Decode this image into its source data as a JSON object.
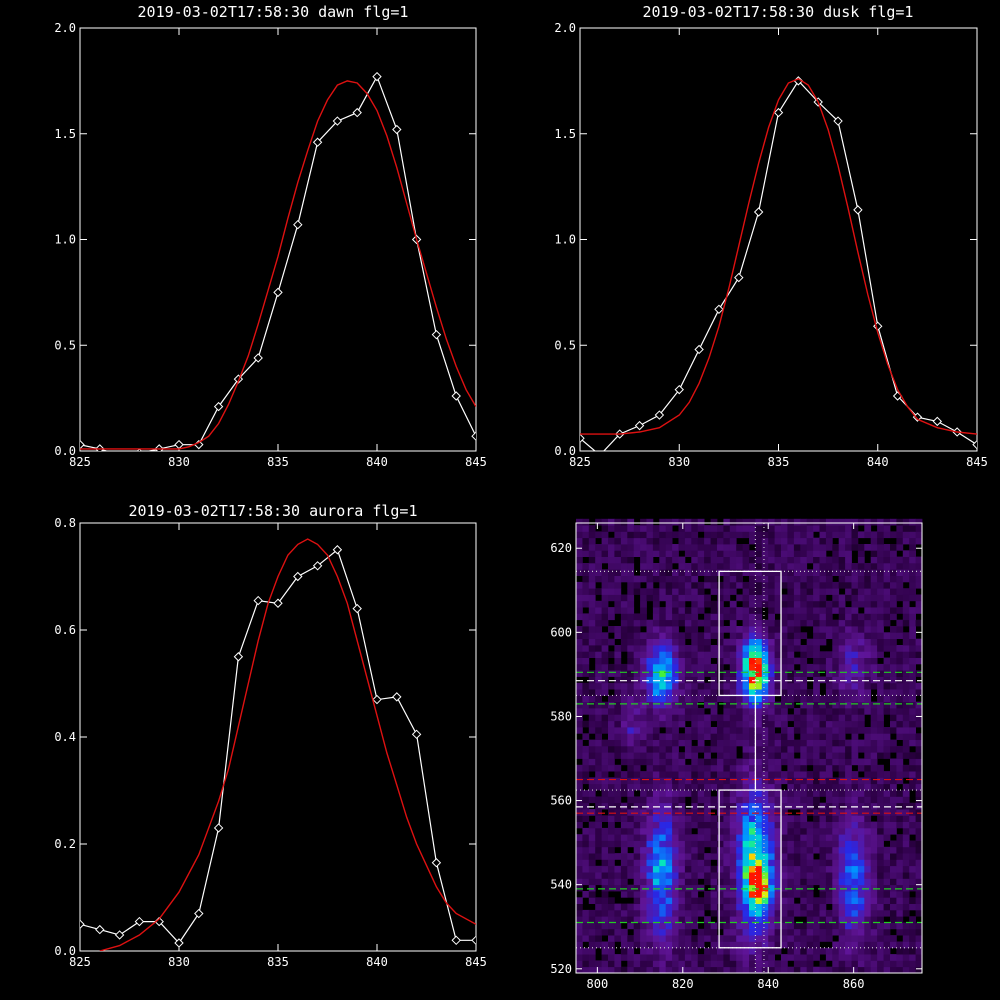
{
  "chart_data": [
    {
      "type": "line",
      "title": "2019-03-02T17:58:30 dawn flg=1",
      "xlim": [
        825,
        845
      ],
      "ylim": [
        0,
        2.0
      ],
      "xticks": [
        825,
        830,
        835,
        840,
        845
      ],
      "yticks": [
        0.0,
        0.5,
        1.0,
        1.5,
        2.0
      ],
      "xtick_labels": [
        "825",
        "830",
        "835",
        "840",
        "845"
      ],
      "ytick_labels": [
        "0.0",
        "0.5",
        "1.0",
        "1.5",
        "2.0"
      ],
      "series": [
        {
          "kind": "observed",
          "color": "#ffffff",
          "marker": "diamond",
          "x": [
            825,
            826,
            827,
            828,
            829,
            830,
            831,
            832,
            833,
            834,
            835,
            836,
            837,
            838,
            839,
            840,
            841,
            842,
            843,
            844,
            845
          ],
          "y": [
            0.03,
            0.01,
            -0.02,
            -0.01,
            0.01,
            0.03,
            0.03,
            0.21,
            0.34,
            0.44,
            0.75,
            1.07,
            1.46,
            1.56,
            1.6,
            1.77,
            1.52,
            1.0,
            0.55,
            0.26,
            0.07
          ]
        },
        {
          "kind": "fit",
          "color": "#dd1111",
          "marker": "none",
          "x": [
            825,
            826,
            827,
            828,
            829,
            830,
            830.5,
            831,
            831.5,
            832,
            832.5,
            833,
            833.5,
            834,
            834.5,
            835,
            835.5,
            836,
            836.5,
            837,
            837.5,
            838,
            838.5,
            839,
            839.5,
            840,
            840.5,
            841,
            841.5,
            842,
            842.5,
            843,
            843.5,
            844,
            844.5,
            845
          ],
          "y": [
            0.01,
            0.01,
            0.01,
            0.01,
            0.01,
            0.01,
            0.02,
            0.04,
            0.07,
            0.13,
            0.22,
            0.33,
            0.45,
            0.6,
            0.76,
            0.92,
            1.1,
            1.27,
            1.42,
            1.56,
            1.66,
            1.73,
            1.75,
            1.74,
            1.69,
            1.61,
            1.49,
            1.34,
            1.17,
            1.0,
            0.84,
            0.68,
            0.53,
            0.4,
            0.29,
            0.21
          ]
        }
      ]
    },
    {
      "type": "line",
      "title": "2019-03-02T17:58:30 dusk flg=1",
      "xlim": [
        825,
        845
      ],
      "ylim": [
        0,
        2.0
      ],
      "xticks": [
        825,
        830,
        835,
        840,
        845
      ],
      "yticks": [
        0.0,
        0.5,
        1.0,
        1.5,
        2.0
      ],
      "xtick_labels": [
        "825",
        "830",
        "835",
        "840",
        "845"
      ],
      "ytick_labels": [
        "0.0",
        "0.5",
        "1.0",
        "1.5",
        "2.0"
      ],
      "series": [
        {
          "kind": "observed",
          "color": "#ffffff",
          "marker": "diamond",
          "x": [
            825,
            826,
            827,
            828,
            829,
            830,
            831,
            832,
            833,
            834,
            835,
            836,
            837,
            838,
            839,
            840,
            841,
            842,
            843,
            844,
            845
          ],
          "y": [
            0.06,
            -0.02,
            0.08,
            0.12,
            0.17,
            0.29,
            0.48,
            0.67,
            0.82,
            1.13,
            1.6,
            1.75,
            1.65,
            1.56,
            1.14,
            0.59,
            0.26,
            0.16,
            0.14,
            0.09,
            0.03
          ]
        },
        {
          "kind": "fit",
          "color": "#dd1111",
          "marker": "none",
          "x": [
            825,
            826,
            827,
            828,
            829,
            830,
            830.5,
            831,
            831.5,
            832,
            832.5,
            833,
            833.5,
            834,
            834.5,
            835,
            835.5,
            836,
            836.5,
            837,
            837.5,
            838,
            838.5,
            839,
            839.5,
            840,
            840.5,
            841,
            841.5,
            842,
            843,
            844,
            845
          ],
          "y": [
            0.08,
            0.08,
            0.08,
            0.09,
            0.11,
            0.17,
            0.23,
            0.32,
            0.44,
            0.59,
            0.77,
            0.97,
            1.17,
            1.36,
            1.53,
            1.66,
            1.74,
            1.76,
            1.73,
            1.65,
            1.52,
            1.35,
            1.15,
            0.94,
            0.74,
            0.56,
            0.41,
            0.29,
            0.21,
            0.15,
            0.11,
            0.09,
            0.08
          ]
        }
      ]
    },
    {
      "type": "line",
      "title": "2019-03-02T17:58:30 aurora flg=1",
      "xlim": [
        825,
        845
      ],
      "ylim": [
        0,
        0.8
      ],
      "xticks": [
        825,
        830,
        835,
        840,
        845
      ],
      "yticks": [
        0.0,
        0.2,
        0.4,
        0.6,
        0.8
      ],
      "xtick_labels": [
        "825",
        "830",
        "835",
        "840",
        "845"
      ],
      "ytick_labels": [
        "0.0",
        "0.2",
        "0.4",
        "0.6",
        "0.8"
      ],
      "series": [
        {
          "kind": "observed",
          "color": "#ffffff",
          "marker": "diamond",
          "x": [
            825,
            826,
            827,
            828,
            829,
            830,
            831,
            832,
            833,
            834,
            835,
            836,
            837,
            838,
            839,
            840,
            841,
            842,
            843,
            844,
            845
          ],
          "y": [
            0.05,
            0.04,
            0.03,
            0.055,
            0.055,
            0.015,
            0.07,
            0.23,
            0.55,
            0.655,
            0.65,
            0.7,
            0.72,
            0.75,
            0.64,
            0.47,
            0.475,
            0.405,
            0.165,
            0.02,
            0.02
          ]
        },
        {
          "kind": "fit",
          "color": "#dd1111",
          "marker": "none",
          "x": [
            826,
            827,
            828,
            829,
            830,
            831,
            832,
            832.5,
            833,
            833.5,
            834,
            834.5,
            835,
            835.5,
            836,
            836.5,
            837,
            837.5,
            838,
            838.5,
            839,
            839.5,
            840,
            840.5,
            841,
            841.5,
            842,
            842.5,
            843,
            843.5,
            844,
            845
          ],
          "y": [
            0.0,
            0.01,
            0.03,
            0.06,
            0.11,
            0.18,
            0.28,
            0.34,
            0.42,
            0.5,
            0.58,
            0.65,
            0.7,
            0.74,
            0.76,
            0.77,
            0.76,
            0.74,
            0.7,
            0.65,
            0.58,
            0.51,
            0.44,
            0.37,
            0.31,
            0.25,
            0.2,
            0.16,
            0.12,
            0.09,
            0.07,
            0.05
          ]
        }
      ]
    },
    {
      "type": "heatmap",
      "xlim": [
        795,
        876
      ],
      "ylim": [
        519,
        626
      ],
      "xticks": [
        800,
        820,
        840,
        860
      ],
      "yticks": [
        520,
        540,
        560,
        580,
        600,
        620
      ],
      "xtick_labels": [
        "800",
        "820",
        "840",
        "860"
      ],
      "ytick_labels": [
        "520",
        "540",
        "560",
        "580",
        "600",
        "620"
      ],
      "colormap": "rainbow",
      "blobs": [
        {
          "x": 815,
          "y": 590,
          "sx": 2.5,
          "sy": 5,
          "amp": 0.55
        },
        {
          "x": 837,
          "y": 591,
          "sx": 2.2,
          "sy": 5,
          "amp": 0.85
        },
        {
          "x": 837,
          "y": 545,
          "sx": 2.8,
          "sy": 11,
          "amp": 0.65
        },
        {
          "x": 838,
          "y": 540,
          "sx": 1.8,
          "sy": 3,
          "amp": 0.55
        },
        {
          "x": 815,
          "y": 543,
          "sx": 2.5,
          "sy": 10,
          "amp": 0.45
        },
        {
          "x": 808,
          "y": 578,
          "sx": 1.5,
          "sy": 4,
          "amp": 0.15
        },
        {
          "x": 860,
          "y": 541,
          "sx": 2.5,
          "sy": 9,
          "amp": 0.35
        },
        {
          "x": 860,
          "y": 592,
          "sx": 2.5,
          "sy": 5,
          "amp": 0.2
        }
      ],
      "boxes": [
        {
          "x": [
            828.5,
            843
          ],
          "y": [
            585,
            614.5
          ],
          "color": "#ffffff"
        },
        {
          "x": [
            828.5,
            843
          ],
          "y": [
            525,
            562.5
          ],
          "color": "#ffffff"
        }
      ],
      "connector": {
        "x": 837,
        "y": [
          562.5,
          585
        ],
        "color": "#ffffff"
      },
      "vlines": [
        {
          "x": 837,
          "color": "#cccccc",
          "style": "dotted"
        },
        {
          "x": 839,
          "color": "#cccccc",
          "style": "dotted"
        }
      ],
      "hlines": [
        {
          "y": 614.5,
          "color": "#cccccc",
          "style": "dotted"
        },
        {
          "y": 590.5,
          "color": "#22cc22",
          "style": "dashed"
        },
        {
          "y": 588.5,
          "color": "#ffffff",
          "style": "dashed"
        },
        {
          "y": 585,
          "color": "#cccccc",
          "style": "dotted"
        },
        {
          "y": 583,
          "color": "#22cc22",
          "style": "dashed"
        },
        {
          "y": 565,
          "color": "#dd1111",
          "style": "dashed"
        },
        {
          "y": 562.5,
          "color": "#cccccc",
          "style": "dotted"
        },
        {
          "y": 558.5,
          "color": "#ffffff",
          "style": "dashed"
        },
        {
          "y": 557,
          "color": "#dd1111",
          "style": "dashed"
        },
        {
          "y": 539,
          "color": "#22cc22",
          "style": "dashed"
        },
        {
          "y": 531,
          "color": "#22cc22",
          "style": "dashed"
        },
        {
          "y": 525,
          "color": "#cccccc",
          "style": "dotted"
        }
      ]
    }
  ]
}
